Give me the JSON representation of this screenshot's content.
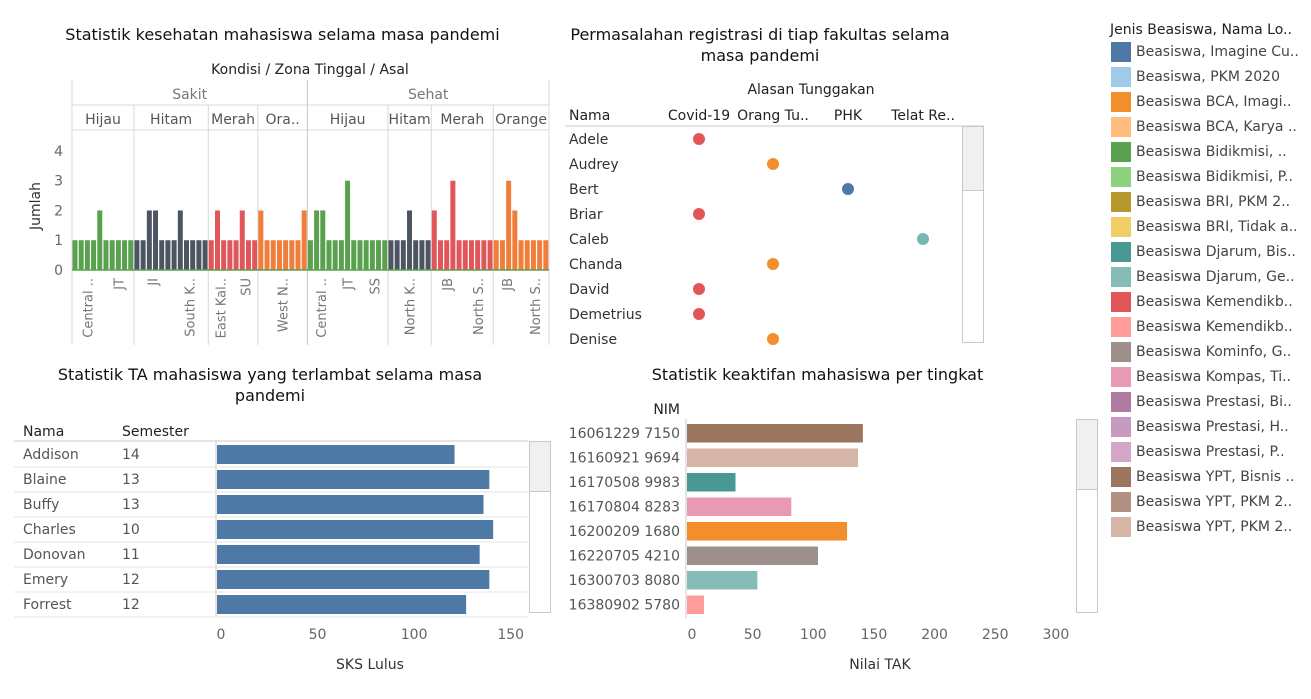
{
  "chart_data": [
    {
      "type": "bar",
      "title": "Statistik kesehatan mahasiswa selama masa pandemi",
      "header_path": "Kondisi  /  Zona Tinggal  /  Asal",
      "ylabel": "Jumlah",
      "yticks": [
        "0",
        "1",
        "2",
        "3",
        "4"
      ],
      "ylim": [
        0,
        4
      ],
      "grid": false,
      "groups": [
        {
          "kondisi": "Sakit",
          "zones": [
            {
              "label": "Hijau",
              "color": "#59a14f",
              "values": [
                1,
                1,
                1,
                1,
                2,
                1,
                1,
                1,
                1,
                1
              ],
              "ticks": [
                "Central ..",
                "JT"
              ]
            },
            {
              "label": "Hitam",
              "color": "#4d5562",
              "values": [
                1,
                1,
                2,
                2,
                1,
                1,
                1,
                2,
                1,
                1,
                1,
                1
              ],
              "ticks": [
                "JI",
                "South K.."
              ]
            },
            {
              "label": "Merah",
              "color": "#e15759",
              "values": [
                1,
                2,
                1,
                1,
                1,
                2,
                1,
                1
              ],
              "ticks": [
                "East Kal..",
                "SU"
              ]
            },
            {
              "label": "Ora..",
              "color": "#f07d3a",
              "values": [
                2,
                1,
                1,
                1,
                1,
                1,
                1,
                2
              ],
              "ticks": [
                "West N.."
              ]
            }
          ]
        },
        {
          "kondisi": "Sehat",
          "zones": [
            {
              "label": "Hijau",
              "color": "#59a14f",
              "values": [
                1,
                2,
                2,
                1,
                1,
                1,
                3,
                1,
                1,
                1,
                1,
                1,
                1
              ],
              "ticks": [
                "Central ..",
                "JT",
                "SS"
              ]
            },
            {
              "label": "Hitam",
              "color": "#4d5562",
              "values": [
                1,
                1,
                1,
                2,
                1,
                1,
                1
              ],
              "ticks": [
                "North K.."
              ]
            },
            {
              "label": "Merah",
              "color": "#e15759",
              "values": [
                2,
                1,
                1,
                3,
                1,
                1,
                1,
                1,
                1,
                1
              ],
              "ticks": [
                "JB",
                "North S.."
              ]
            },
            {
              "label": "Orange",
              "color": "#f07d3a",
              "values": [
                1,
                1,
                3,
                2,
                1,
                1,
                1,
                1,
                1
              ],
              "ticks": [
                "JB",
                "North S.."
              ]
            }
          ]
        }
      ]
    },
    {
      "type": "scatter",
      "title": "Permasalahan registrasi di tiap fakultas selama masa pandemi",
      "column_header": "Alasan Tunggakan",
      "row_header": "Nama",
      "columns": [
        "Covid-19",
        "Orang Tu..",
        "PHK",
        "Telat Re.."
      ],
      "points": [
        {
          "name": "Adele",
          "column": "Covid-19",
          "color": "#e15759"
        },
        {
          "name": "Audrey",
          "column": "Orang Tu..",
          "color": "#f28e2b"
        },
        {
          "name": "Bert",
          "column": "PHK",
          "color": "#4e79a7"
        },
        {
          "name": "Briar",
          "column": "Covid-19",
          "color": "#e15759"
        },
        {
          "name": "Caleb",
          "column": "Telat Re..",
          "color": "#76b7b2"
        },
        {
          "name": "Chanda",
          "column": "Orang Tu..",
          "color": "#f28e2b"
        },
        {
          "name": "David",
          "column": "Covid-19",
          "color": "#e15759"
        },
        {
          "name": "Demetrius",
          "column": "Covid-19",
          "color": "#e15759"
        },
        {
          "name": "Denise",
          "column": "Orang Tu..",
          "color": "#f28e2b"
        }
      ]
    },
    {
      "type": "bar",
      "orientation": "horizontal",
      "title": "Statistik TA mahasiswa yang terlambat selama masa pandemi",
      "col_headers": [
        "Nama",
        "Semester"
      ],
      "xlabel": "SKS Lulus",
      "xticks": [
        "0",
        "50",
        "100",
        "150"
      ],
      "xlim": [
        0,
        160
      ],
      "bar_color": "#4e79a7",
      "rows": [
        {
          "nama": "Addison",
          "semester": "14",
          "value": 123
        },
        {
          "nama": "Blaine",
          "semester": "13",
          "value": 141
        },
        {
          "nama": "Buffy",
          "semester": "13",
          "value": 138
        },
        {
          "nama": "Charles",
          "semester": "10",
          "value": 143
        },
        {
          "nama": "Donovan",
          "semester": "11",
          "value": 136
        },
        {
          "nama": "Emery",
          "semester": "12",
          "value": 141
        },
        {
          "nama": "Forrest",
          "semester": "12",
          "value": 129
        }
      ]
    },
    {
      "type": "bar",
      "orientation": "horizontal",
      "title": "Statistik keaktifan mahasiswa per tingkat",
      "col_header": "NIM",
      "xlabel": "Nilai TAK",
      "xticks": [
        "0",
        "50",
        "100",
        "150",
        "200",
        "250",
        "300"
      ],
      "xlim": [
        0,
        310
      ],
      "rows": [
        {
          "nim": "16061229 7150",
          "value": 145,
          "color": "#9c755f"
        },
        {
          "nim": "16160921 9694",
          "value": 141,
          "color": "#d7b5a6"
        },
        {
          "nim": "16170508 9983",
          "value": 40,
          "color": "#499894"
        },
        {
          "nim": "16170804 8283",
          "value": 86,
          "color": "#e799b5"
        },
        {
          "nim": "16200209 1680",
          "value": 132,
          "color": "#f28e2b"
        },
        {
          "nim": "16220705 4210",
          "value": 108,
          "color": "#9d8f8a"
        },
        {
          "nim": "16300703 8080",
          "value": 58,
          "color": "#86bcb6"
        },
        {
          "nim": "16380902 5780",
          "value": 14,
          "color": "#ff9d9a"
        }
      ]
    }
  ],
  "legend": {
    "title": "Jenis Beasiswa, Nama Lo..",
    "items": [
      {
        "label": "Beasiswa, Imagine Cu..",
        "color": "#4e79a7"
      },
      {
        "label": "Beasiswa, PKM 2020",
        "color": "#a0cbe8"
      },
      {
        "label": "Beasiswa BCA, Imagi..",
        "color": "#f28e2b"
      },
      {
        "label": "Beasiswa BCA, Karya ..",
        "color": "#ffbe7d"
      },
      {
        "label": "Beasiswa Bidikmisi, ..",
        "color": "#59a14f"
      },
      {
        "label": "Beasiswa Bidikmisi, P..",
        "color": "#8cd17d"
      },
      {
        "label": "Beasiswa BRI, PKM 2..",
        "color": "#b6992d"
      },
      {
        "label": "Beasiswa BRI, Tidak a..",
        "color": "#f1ce63"
      },
      {
        "label": "Beasiswa Djarum, Bis..",
        "color": "#499894"
      },
      {
        "label": "Beasiswa Djarum, Ge..",
        "color": "#86bcb6"
      },
      {
        "label": "Beasiswa Kemendikb..",
        "color": "#e15759"
      },
      {
        "label": "Beasiswa Kemendikb..",
        "color": "#ff9d9a"
      },
      {
        "label": "Beasiswa Kominfo, G..",
        "color": "#9d8f8a"
      },
      {
        "label": "Beasiswa Kompas, Ti..",
        "color": "#e799b5"
      },
      {
        "label": "Beasiswa Prestasi, Bi..",
        "color": "#b07aa1"
      },
      {
        "label": "Beasiswa Prestasi, H..",
        "color": "#c79bbf"
      },
      {
        "label": "Beasiswa Prestasi, P..",
        "color": "#d4a6c8"
      },
      {
        "label": "Beasiswa YPT, Bisnis ..",
        "color": "#9c755f"
      },
      {
        "label": "Beasiswa YPT, PKM 2..",
        "color": "#b39182"
      },
      {
        "label": "Beasiswa YPT, PKM 2..",
        "color": "#d7b5a6"
      }
    ]
  }
}
